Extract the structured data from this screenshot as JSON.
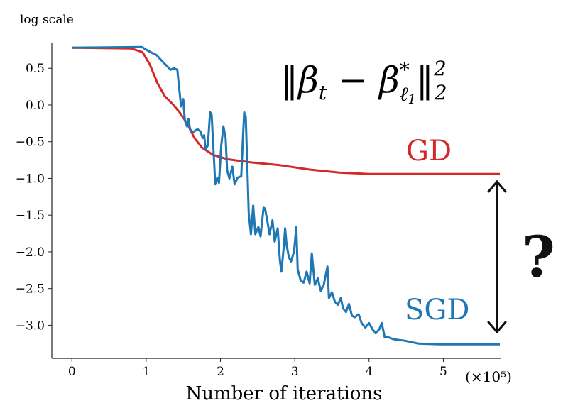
{
  "chart_data": {
    "type": "line",
    "title": "",
    "ylabel": "log scale",
    "xlabel": "Number of iterations",
    "x_scale_note": "(×10⁵)",
    "formula": {
      "main": "‖β",
      "sub_t": "t",
      "minus": " − β",
      "star": "*",
      "sub_l": "ℓ",
      "sub_1": "1",
      "close": "‖",
      "sup": "2",
      "sub2": "2"
    },
    "question_mark": "?",
    "xlim": [
      -0.27,
      5.77
    ],
    "ylim": [
      -3.45,
      0.85
    ],
    "xticks": [
      0,
      1,
      2,
      3,
      4,
      5
    ],
    "xtick_labels": [
      "0",
      "1",
      "2",
      "3",
      "4",
      "5"
    ],
    "yticks": [
      0.5,
      0.0,
      -0.5,
      -1.0,
      -1.5,
      -2.0,
      -2.5,
      -3.0
    ],
    "ytick_labels": [
      "0.5",
      "0.0",
      "−0.5",
      "−1.0",
      "−1.5",
      "−2.0",
      "−2.5",
      "−3.0"
    ],
    "grid": false,
    "series": [
      {
        "name": "GD",
        "color": "#d62728",
        "x": [
          0,
          0.8,
          0.95,
          1.05,
          1.15,
          1.25,
          1.35,
          1.45,
          1.55,
          1.65,
          1.75,
          1.9,
          2.1,
          2.4,
          2.8,
          3.2,
          3.6,
          4.0,
          5.76
        ],
        "y": [
          0.78,
          0.77,
          0.72,
          0.55,
          0.3,
          0.12,
          0.02,
          -0.1,
          -0.25,
          -0.45,
          -0.58,
          -0.68,
          -0.74,
          -0.78,
          -0.82,
          -0.88,
          -0.92,
          -0.94,
          -0.94
        ]
      },
      {
        "name": "SGD",
        "color": "#1f77b4",
        "x": [
          0,
          0.94,
          1.04,
          1.14,
          1.23,
          1.33,
          1.37,
          1.42,
          1.44,
          1.47,
          1.5,
          1.52,
          1.55,
          1.57,
          1.59,
          1.63,
          1.69,
          1.73,
          1.76,
          1.78,
          1.8,
          1.83,
          1.86,
          1.88,
          1.9,
          1.93,
          1.96,
          1.98,
          2.01,
          2.04,
          2.07,
          2.09,
          2.12,
          2.16,
          2.19,
          2.23,
          2.28,
          2.3,
          2.32,
          2.34,
          2.36,
          2.38,
          2.41,
          2.44,
          2.47,
          2.51,
          2.54,
          2.58,
          2.6,
          2.63,
          2.66,
          2.7,
          2.73,
          2.77,
          2.8,
          2.82,
          2.85,
          2.87,
          2.89,
          2.92,
          2.95,
          2.99,
          3.02,
          3.04,
          3.08,
          3.12,
          3.16,
          3.2,
          3.23,
          3.27,
          3.31,
          3.35,
          3.39,
          3.44,
          3.46,
          3.5,
          3.54,
          3.58,
          3.62,
          3.65,
          3.69,
          3.73,
          3.77,
          3.81,
          3.86,
          3.9,
          3.95,
          4.0,
          4.05,
          4.09,
          4.14,
          4.17,
          4.21,
          4.25,
          4.33,
          4.48,
          4.67,
          4.95,
          5.76
        ],
        "y": [
          0.78,
          0.79,
          0.73,
          0.68,
          0.58,
          0.48,
          0.5,
          0.48,
          0.27,
          -0.02,
          0.08,
          -0.21,
          -0.29,
          -0.19,
          -0.33,
          -0.37,
          -0.33,
          -0.36,
          -0.45,
          -0.41,
          -0.6,
          -0.55,
          -0.1,
          -0.12,
          -0.5,
          -1.08,
          -0.99,
          -1.06,
          -0.55,
          -0.29,
          -0.45,
          -0.89,
          -1.0,
          -0.84,
          -1.08,
          -0.99,
          -0.97,
          -0.5,
          -0.1,
          -0.16,
          -0.79,
          -1.47,
          -1.76,
          -1.37,
          -1.76,
          -1.66,
          -1.79,
          -1.4,
          -1.41,
          -1.57,
          -1.76,
          -1.57,
          -1.86,
          -1.68,
          -2.11,
          -2.27,
          -1.95,
          -1.68,
          -1.9,
          -2.07,
          -2.13,
          -2.0,
          -1.66,
          -2.24,
          -2.39,
          -2.42,
          -2.27,
          -2.43,
          -2.02,
          -2.45,
          -2.36,
          -2.53,
          -2.45,
          -2.2,
          -2.63,
          -2.55,
          -2.68,
          -2.72,
          -2.63,
          -2.77,
          -2.82,
          -2.71,
          -2.87,
          -2.89,
          -2.85,
          -2.97,
          -3.03,
          -2.97,
          -3.06,
          -3.11,
          -3.05,
          -2.97,
          -3.16,
          -3.16,
          -3.19,
          -3.21,
          -3.25,
          -3.26,
          -3.26
        ]
      }
    ],
    "annotations": {
      "gd_label": "GD",
      "sgd_label": "SGD"
    }
  }
}
